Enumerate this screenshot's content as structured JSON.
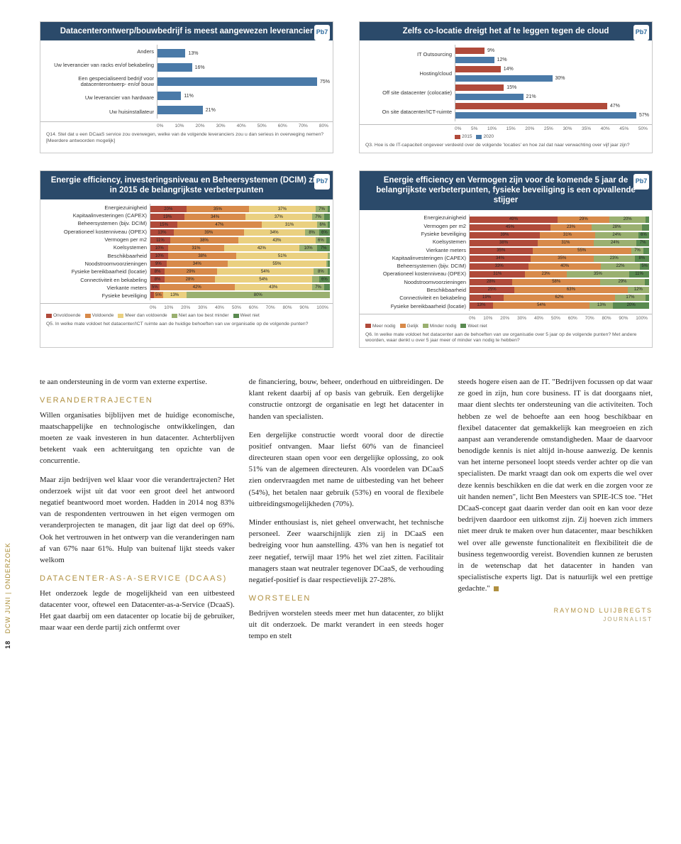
{
  "charts": {
    "chart1": {
      "title": "Datacenterontwerp/bouwbedrijf is meest aangewezen leverancier",
      "logo": "Pb7",
      "type": "bar",
      "bar_color": "#4a7aa8",
      "label_fontsize": 7.5,
      "rows": [
        {
          "label": "Anders",
          "value": 13
        },
        {
          "label": "Uw leverancier van racks en/of bekabeling",
          "value": 16
        },
        {
          "label": "Een gespecialiseerd bedrijf voor datacenterontwerp- en/of bouw",
          "value": 75
        },
        {
          "label": "Uw leverancier van hardware",
          "value": 11
        },
        {
          "label": "Uw huisinstallateur",
          "value": 21
        }
      ],
      "xaxis": [
        "0%",
        "10%",
        "20%",
        "30%",
        "40%",
        "50%",
        "60%",
        "70%",
        "80%"
      ],
      "xmax": 80,
      "caption": "Q14. Stel dat u een DCaaS service zou overwegen, welke van de volgende leveranciers zou u dan serieus in overweging nemen? [Meerdere antwoorden mogelijk]"
    },
    "chart2": {
      "title": "Zelfs co-locatie dreigt het af te leggen tegen de cloud",
      "logo": "Pb7",
      "type": "grouped-bar",
      "colors_2015": "#b04a3a",
      "colors_2020": "#4a7aa8",
      "label_fontsize": 7.5,
      "rows": [
        {
          "label": "IT Outsourcing",
          "v2015": 9,
          "v2020": 12
        },
        {
          "label": "Hosting/cloud",
          "v2015": 14,
          "v2020": 30
        },
        {
          "label": "Off site datacenter (colocatie)",
          "v2015": 15,
          "v2020": 21
        },
        {
          "label": "On site datacenter/ICT-ruimte",
          "v2015": 47,
          "v2020": 57
        }
      ],
      "xaxis": [
        "0%",
        "5%",
        "10%",
        "15%",
        "20%",
        "25%",
        "30%",
        "35%",
        "40%",
        "45%",
        "50%"
      ],
      "xmax": 60,
      "legend": [
        {
          "label": "2015",
          "color": "#b04a3a"
        },
        {
          "label": "2020",
          "color": "#4a7aa8"
        }
      ],
      "caption": "Q3. Hoe is de IT-capaciteit ongeveer verdeeld over de volgende 'locaties' en hoe zal dat naar verwachting over vijf jaar zijn?"
    },
    "chart3": {
      "title": "Energie efficiency, investeringsniveau en Beheersystemen (DCIM) zijn in 2015 de belangrijkste verbeterpunten",
      "logo": "Pb7",
      "type": "stacked-bar",
      "label_fontsize": 7.5,
      "segment_colors": [
        "#b04a3a",
        "#d88a4a",
        "#ead080",
        "#9ab070",
        "#5a8a50"
      ],
      "rows": [
        {
          "label": "Energiezuinigheid",
          "segs": [
            20,
            35,
            37,
            7,
            1
          ]
        },
        {
          "label": "Kapitaalinvesteringen (CAPEX)",
          "segs": [
            19,
            34,
            37,
            7,
            3
          ]
        },
        {
          "label": "Beheersystemen (bijv. DCIM)",
          "segs": [
            15,
            47,
            31,
            6,
            1
          ]
        },
        {
          "label": "Operationeel kostenniveau (OPEX)",
          "segs": [
            13,
            39,
            34,
            8,
            6
          ]
        },
        {
          "label": "Vermogen per m2",
          "segs": [
            11,
            38,
            43,
            6,
            2
          ]
        },
        {
          "label": "Koelsystemen",
          "segs": [
            10,
            31,
            42,
            10,
            7
          ]
        },
        {
          "label": "Beschikbaarheid",
          "segs": [
            10,
            38,
            51,
            1,
            0
          ]
        },
        {
          "label": "Noodstroomvoorzieningen",
          "segs": [
            9,
            34,
            55,
            1,
            1
          ]
        },
        {
          "label": "Fysieke bereikbaarheid (locatie)",
          "segs": [
            8,
            29,
            54,
            8,
            1
          ]
        },
        {
          "label": "Connectiviteit en bekabeling",
          "segs": [
            8,
            28,
            54,
            4,
            6
          ]
        },
        {
          "label": "Vierkante meters",
          "segs": [
            5,
            42,
            43,
            7,
            3
          ]
        },
        {
          "label": "Fysieke beveiliging",
          "segs": [
            2,
            5,
            13,
            80,
            0
          ]
        }
      ],
      "xaxis": [
        "0%",
        "10%",
        "20%",
        "30%",
        "40%",
        "50%",
        "60%",
        "70%",
        "80%",
        "90%",
        "100%"
      ],
      "xmax": 100,
      "legend": [
        {
          "label": "Onvoldoende",
          "color": "#b04a3a"
        },
        {
          "label": "Voldoende",
          "color": "#d88a4a"
        },
        {
          "label": "Meer dan voldoende",
          "color": "#ead080"
        },
        {
          "label": "Niet aan toe best minder",
          "color": "#9ab070"
        },
        {
          "label": "Weet niet",
          "color": "#5a8a50"
        }
      ],
      "caption": "Q5. In welke mate voldoet het datacenter/ICT ruimte aan de huidige behoeften van uw organisatie op de volgende punten?"
    },
    "chart4": {
      "title": "Energie efficiency en Vermogen zijn voor de komende 5 jaar de belangrijkste verbeterpunten, fysieke beveiliging is een opvallende stijger",
      "logo": "Pb7",
      "type": "stacked-bar",
      "label_fontsize": 7.5,
      "segment_colors": [
        "#b04a3a",
        "#d88a4a",
        "#9ab070",
        "#5a8a50"
      ],
      "rows": [
        {
          "label": "Energiezuinigheid",
          "segs": [
            49,
            29,
            20,
            2
          ]
        },
        {
          "label": "Vermogen per m2",
          "segs": [
            45,
            23,
            28,
            4
          ]
        },
        {
          "label": "Fysieke beveiliging",
          "segs": [
            39,
            31,
            24,
            6
          ]
        },
        {
          "label": "Koelsystemen",
          "segs": [
            38,
            31,
            24,
            7
          ]
        },
        {
          "label": "Vierkante meters",
          "segs": [
            35,
            55,
            7,
            3
          ]
        },
        {
          "label": "Kapitaalinvesteringen (CAPEX)",
          "segs": [
            34,
            35,
            23,
            8
          ]
        },
        {
          "label": "Beheersystemen (bijv. DCIM)",
          "segs": [
            33,
            40,
            22,
            5
          ]
        },
        {
          "label": "Operationeel kostenniveau (OPEX)",
          "segs": [
            31,
            23,
            35,
            11
          ]
        },
        {
          "label": "Noodstroomvoorzieningen",
          "segs": [
            28,
            58,
            29,
            3
          ]
        },
        {
          "label": "Beschikbaarheid",
          "segs": [
            25,
            63,
            12,
            0
          ]
        },
        {
          "label": "Connectiviteit en bekabeling",
          "segs": [
            19,
            62,
            17,
            2
          ]
        },
        {
          "label": "Fysieke bereikbaarheid (locatie)",
          "segs": [
            13,
            54,
            13,
            20
          ]
        }
      ],
      "xaxis": [
        "0%",
        "10%",
        "20%",
        "30%",
        "40%",
        "50%",
        "60%",
        "70%",
        "80%",
        "90%",
        "100%"
      ],
      "xmax": 100,
      "legend": [
        {
          "label": "Meer nodig",
          "color": "#b04a3a"
        },
        {
          "label": "Gelijk",
          "color": "#d88a4a"
        },
        {
          "label": "Minder nodig",
          "color": "#9ab070"
        },
        {
          "label": "Weet niet",
          "color": "#5a8a50"
        }
      ],
      "caption": "Q6. In welke mate voldoet het datacenter aan de behoeften van uw organisatie over 5 jaar op de volgende punten? Met andere woorden, waar denkt u over 5 jaar meer of minder van nodig te hebben?"
    }
  },
  "sidebar": {
    "page": "18",
    "label": "DCW JUNI | ONDERZOEK"
  },
  "article": {
    "col1_p1": "te aan ondersteuning in de vorm van externe expertise.",
    "sec1_title": "VERANDERTRAJECTEN",
    "col1_p2": "Willen organisaties bijblijven met de huidige economische, maatschappelijke en technologische ontwikkelingen, dan moeten ze vaak investeren in hun datacenter. Achterblijven betekent vaak een achteruitgang ten opzichte van de concurrentie.",
    "col1_p3": "Maar zijn bedrijven wel klaar voor die verandertrajecten? Het onderzoek wijst uit dat voor een groot deel het antwoord negatief beantwoord moet worden. Hadden in 2014 nog 83% van de respondenten vertrouwen in het eigen vermogen om veranderprojecten te managen, dit jaar ligt dat deel op 69%. Ook het vertrouwen in het ontwerp van die veranderingen nam af van 67% naar 61%. Hulp van buitenaf lijkt steeds vaker welkom",
    "sec2_title": "DATACENTER-AS-A-SERVICE (DCAAS)",
    "col1_p4": "Het onderzoek legde de mogelijkheid van een uitbesteed datacenter voor, oftewel een Datacenter-as-a-Service (DcaaS). Het gaat daarbij om een datacenter op locatie bij de gebruiker, maar waar een derde partij zich ontfermt over",
    "col2_p1": "de financiering, bouw, beheer, onderhoud en uitbreidingen. De klant rekent daarbij af op basis van gebruik. Een dergelijke constructie ontzorgt de organisatie en legt het datacenter in handen van specialisten.",
    "col2_p2": "Een dergelijke constructie wordt vooral door de directie positief ontvangen. Maar liefst 60% van de financieel directeuren staan open voor een dergelijke oplossing, zo ook 51% van de algemeen directeuren. Als voordelen van DCaaS zien ondervraagden met name de uitbesteding van het beheer (54%), het betalen naar gebruik (53%) en vooral de flexibele uitbreidingsmogelijkheden (70%).",
    "col2_p3": "Minder enthousiast is, niet geheel onverwacht, het technische personeel. Zeer waarschijnlijk zien zij in DCaaS een bedreiging voor hun aanstelling. 43% van hen is negatief tot zeer negatief, terwijl maar 19% het wel ziet zitten. Facilitair managers staan wat neutraler tegenover DCaaS, de verhouding negatief-positief is daar respectievelijk 27-28%.",
    "sec3_title": "WORSTELEN",
    "col2_p4": "Bedrijven worstelen steeds meer met hun datacenter, zo blijkt uit dit onderzoek. De markt verandert in een steeds hoger tempo en stelt",
    "col3_p1": "steeds hogere eisen aan de IT. \"Bedrijven focussen op dat waar ze goed in zijn, hun core business. IT is dat doorgaans niet, maar dient slechts ter ondersteuning van die activiteiten. Toch hebben ze wel de behoefte aan een hoog beschikbaar en flexibel datacenter dat gemakkelijk kan meegroeien en zich aanpast aan veranderende omstandigheden. Maar de daarvoor benodigde kennis is niet altijd in-house aanwezig. De kennis van het interne personeel loopt steeds verder achter op die van specialisten. De markt vraagt dan ook om experts die wel over deze kennis beschikken en die dat werk en die zorgen voor ze uit handen nemen\", licht Ben Meesters van SPIE-ICS toe. \"Het DCaaS-concept gaat daarin verder dan ooit en kan voor deze bedrijven daardoor een uitkomst zijn. Zij hoeven zich immers niet meer druk te maken over hun datacenter, maar beschikken wel over alle gewenste functionaliteit en flexibiliteit die de business tegenwoordig vereist. Bovendien kunnen ze berusten in de wetenschap dat het datacenter in handen van specialistische experts ligt. Dat is natuurlijk wel een prettige gedachte.\"",
    "byline": "RAYMOND LUIJBREGTS",
    "byline_sub": "JOURNALIST"
  }
}
